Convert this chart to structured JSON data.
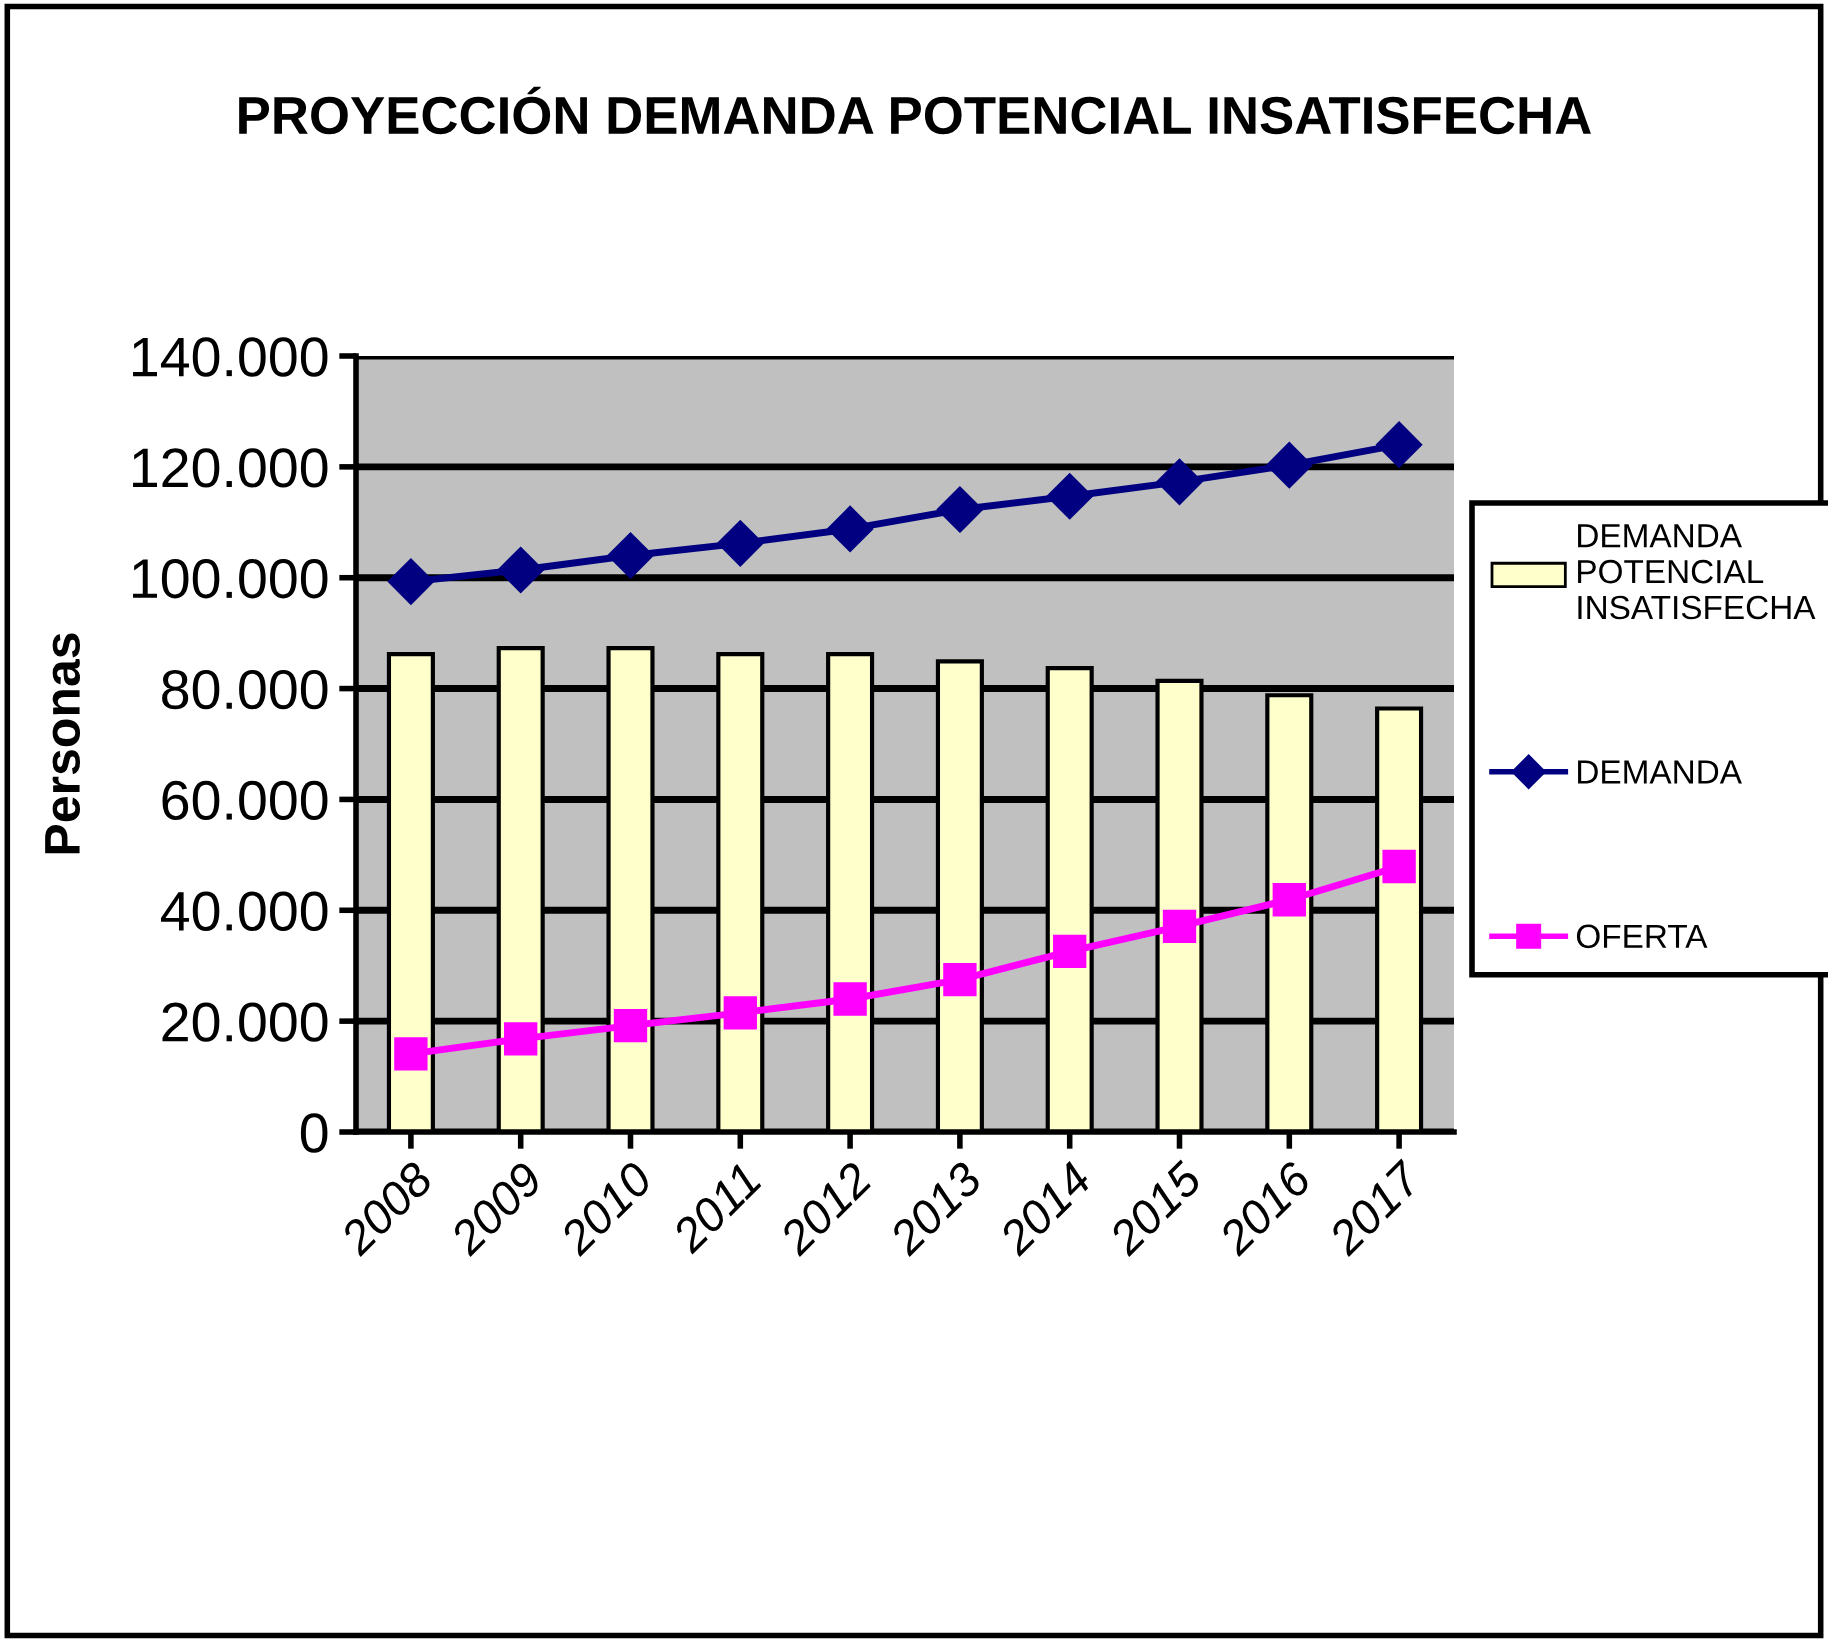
{
  "chart_data": {
    "type": "bar",
    "title": "PROYECCIÓN DEMANDA POTENCIAL INSATISFECHA",
    "ylabel": "Personas",
    "categories": [
      "2008",
      "2009",
      "2010",
      "2011",
      "2012",
      "2013",
      "2014",
      "2015",
      "2016",
      "2017"
    ],
    "series": [
      {
        "name": "DEMANDA POTENCIAL INSATISFECHA",
        "color": "#ffffcc",
        "values": [
          86200,
          87300,
          87300,
          86200,
          86200,
          84900,
          83700,
          81400,
          78800,
          76400
        ]
      },
      {
        "name": "DEMANDA",
        "type": "line",
        "color": "#000080",
        "marker": "diamond",
        "values": [
          99300,
          101400,
          104000,
          106200,
          108800,
          112300,
          114700,
          117300,
          120300,
          124000
        ]
      },
      {
        "name": "OFERTA",
        "type": "line",
        "color": "#ff00ff",
        "marker": "square",
        "values": [
          14100,
          16800,
          19200,
          21500,
          24000,
          27500,
          32600,
          37100,
          41900,
          47900
        ]
      }
    ],
    "ylim": [
      0,
      140000
    ],
    "yticks": [
      {
        "value": 0,
        "label": "0"
      },
      {
        "value": 20000,
        "label": "20.000"
      },
      {
        "value": 40000,
        "label": "40.000"
      },
      {
        "value": 60000,
        "label": "60.000"
      },
      {
        "value": 80000,
        "label": "80.000"
      },
      {
        "value": 100000,
        "label": "100.000"
      },
      {
        "value": 120000,
        "label": "120.000"
      },
      {
        "value": 140000,
        "label": "140.000"
      }
    ],
    "grid": "y",
    "legend": "right"
  }
}
